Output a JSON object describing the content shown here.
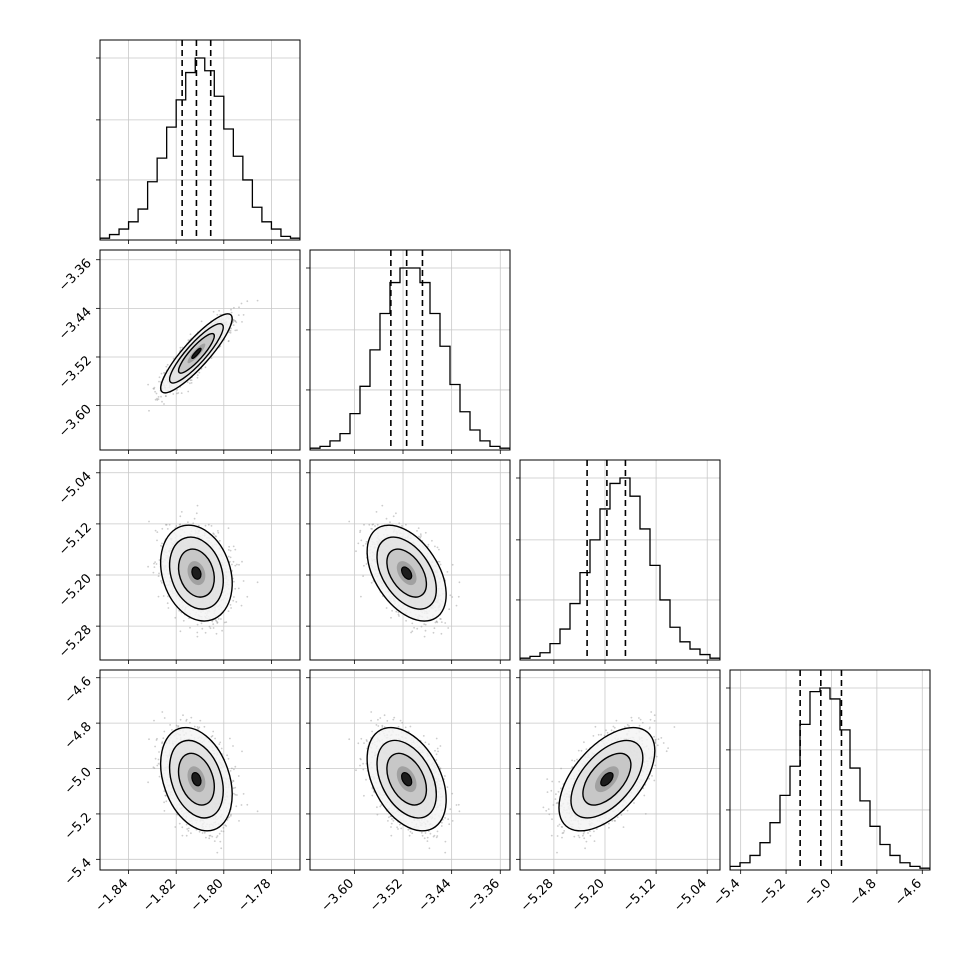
{
  "chart_data": {
    "type": "corner",
    "title": "",
    "grid": true,
    "quantile_style": "dashed",
    "parameters": [
      {
        "range": [
          -1.852,
          -1.768
        ],
        "ticks": [
          -1.84,
          -1.82,
          -1.8,
          -1.78
        ],
        "tick_labels": [
          "−1.84",
          "−1.82",
          "−1.80",
          "−1.78"
        ],
        "quantiles": [
          -1.8175,
          -1.8115,
          -1.8055
        ]
      },
      {
        "range": [
          -3.673,
          -3.344
        ],
        "ticks": [
          -3.6,
          -3.52,
          -3.44,
          -3.36
        ],
        "tick_labels": [
          "−3.60",
          "−3.52",
          "−3.44",
          "−3.36"
        ],
        "quantiles": [
          -3.54,
          -3.514,
          -3.488
        ]
      },
      {
        "range": [
          -5.333,
          -5.02
        ],
        "ticks": [
          -5.28,
          -5.2,
          -5.12,
          -5.04
        ],
        "tick_labels": [
          "−5.28",
          "−5.20",
          "−5.12",
          "−5.04"
        ],
        "quantiles": [
          -5.228,
          -5.197,
          -5.168
        ]
      },
      {
        "range": [
          -5.447,
          -4.566
        ],
        "ticks": [
          -5.4,
          -5.2,
          -5.0,
          -4.8,
          -4.6
        ],
        "tick_labels": [
          "−5.4",
          "−5.2",
          "−5.0",
          "−4.8",
          "−4.6"
        ],
        "quantiles": [
          -5.138,
          -5.047,
          -4.956
        ]
      }
    ],
    "histograms": [
      [
        0.01,
        0.03,
        0.06,
        0.1,
        0.17,
        0.32,
        0.45,
        0.62,
        0.77,
        0.92,
        1.0,
        0.93,
        0.79,
        0.61,
        0.46,
        0.33,
        0.18,
        0.1,
        0.06,
        0.02,
        0.01
      ],
      [
        0.01,
        0.02,
        0.05,
        0.09,
        0.2,
        0.35,
        0.55,
        0.75,
        0.92,
        1.0,
        1.0,
        0.92,
        0.75,
        0.57,
        0.36,
        0.21,
        0.11,
        0.05,
        0.02,
        0.01
      ],
      [
        0.01,
        0.02,
        0.04,
        0.09,
        0.17,
        0.31,
        0.48,
        0.66,
        0.83,
        0.97,
        1.0,
        0.9,
        0.72,
        0.52,
        0.33,
        0.18,
        0.1,
        0.06,
        0.03,
        0.01
      ],
      [
        0.02,
        0.04,
        0.08,
        0.15,
        0.26,
        0.41,
        0.57,
        0.8,
        0.98,
        1.0,
        0.94,
        0.77,
        0.56,
        0.38,
        0.24,
        0.14,
        0.08,
        0.04,
        0.02,
        0.01
      ]
    ],
    "covariance": [
      [
        1.0,
        0.88,
        -0.22,
        -0.3
      ],
      [
        0.88,
        1.0,
        -0.45,
        -0.4
      ],
      [
        -0.22,
        -0.45,
        1.0,
        0.55
      ],
      [
        -0.3,
        -0.4,
        0.55,
        1.0
      ]
    ]
  }
}
